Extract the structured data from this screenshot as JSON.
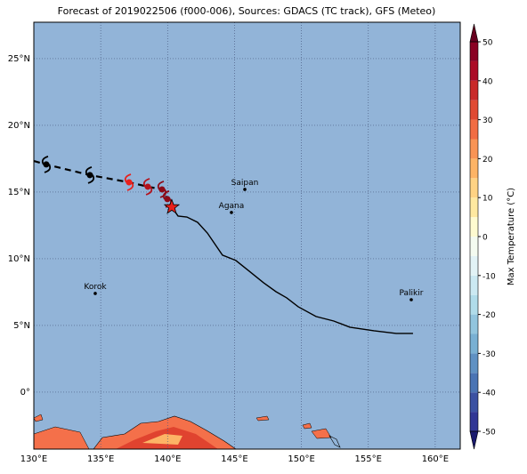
{
  "title": "Forecast of 2019022506 (f000-006), Sources: GDACS (TC track), GFS (Meteo)",
  "map": {
    "xlim": [
      130,
      161.87
    ],
    "ylim": [
      -4.27,
      27.73
    ],
    "xticks": [
      {
        "value": 130,
        "label": "130°E"
      },
      {
        "value": 135,
        "label": "135°E"
      },
      {
        "value": 140,
        "label": "140°E"
      },
      {
        "value": 145,
        "label": "145°E"
      },
      {
        "value": 150,
        "label": "150°E"
      },
      {
        "value": 155,
        "label": "155°E"
      },
      {
        "value": 160,
        "label": "160°E"
      }
    ],
    "yticks": [
      {
        "value": 0,
        "label": "0°"
      },
      {
        "value": 5,
        "label": "5°N"
      },
      {
        "value": 10,
        "label": "10°N"
      },
      {
        "value": 15,
        "label": "15°N"
      },
      {
        "value": 20,
        "label": "20°N"
      },
      {
        "value": 25,
        "label": "25°N"
      }
    ],
    "places": [
      {
        "name": "Saipan",
        "lon": 145.77,
        "lat": 15.2
      },
      {
        "name": "Agana",
        "lon": 144.77,
        "lat": 13.47
      },
      {
        "name": "Korok",
        "lon": 134.59,
        "lat": 7.4
      },
      {
        "name": "Palikir",
        "lon": 158.21,
        "lat": 6.93
      }
    ],
    "past_track": {
      "lon": [
        130,
        130.93,
        134.19,
        137.12,
        138.52,
        139.58,
        139.98,
        140.31
      ],
      "lat": [
        17.33,
        17.07,
        16.27,
        15.73,
        15.4,
        15.2,
        14.47,
        13.87
      ]
    },
    "forecast_track": {
      "lon": [
        140.31,
        140.78,
        141.44,
        142.24,
        142.97,
        144.1,
        145.1,
        146.1,
        147.17,
        148.1,
        148.9,
        149.76,
        151.09,
        152.42,
        153.62,
        155.42,
        157.08,
        158.34
      ],
      "lat": [
        13.87,
        13.2,
        13.13,
        12.73,
        11.93,
        10.27,
        9.87,
        9.07,
        8.2,
        7.53,
        7.07,
        6.4,
        5.67,
        5.33,
        4.87,
        4.6,
        4.4,
        4.4
      ]
    },
    "markers": [
      {
        "lon": 130.93,
        "lat": 17.07,
        "color": "#000000"
      },
      {
        "lon": 134.19,
        "lat": 16.27,
        "color": "#000000"
      },
      {
        "lon": 137.12,
        "lat": 15.73,
        "color": "#e8201c"
      },
      {
        "lon": 138.52,
        "lat": 15.4,
        "color": "#b4121c"
      },
      {
        "lon": 139.58,
        "lat": 15.2,
        "color": "#8c0a18"
      },
      {
        "lon": 139.98,
        "lat": 14.47,
        "color": "#8c0a18"
      }
    ],
    "current": {
      "lon": 140.31,
      "lat": 13.87,
      "color": "#e8201c"
    }
  },
  "colorbar": {
    "label": "Max Temperature (°C)",
    "lim": [
      -50,
      50
    ],
    "ticks": [
      -50,
      -40,
      -30,
      -20,
      -10,
      0,
      10,
      20,
      30,
      40,
      50
    ],
    "colors": [
      "#313695",
      "#3b51a2",
      "#4a74b4",
      "#5f91c3",
      "#79b0d3",
      "#92c5de",
      "#b0dcea",
      "#cbe9f2",
      "#e2f3f6",
      "#f4fbf0",
      "#fefbd0",
      "#fee9a0",
      "#fed384",
      "#fdb466",
      "#f99455",
      "#f26d43",
      "#e04a33",
      "#c92a2a",
      "#ab0b26",
      "#8a0123"
    ],
    "under": "#1a1a6e",
    "over": "#67001f"
  }
}
